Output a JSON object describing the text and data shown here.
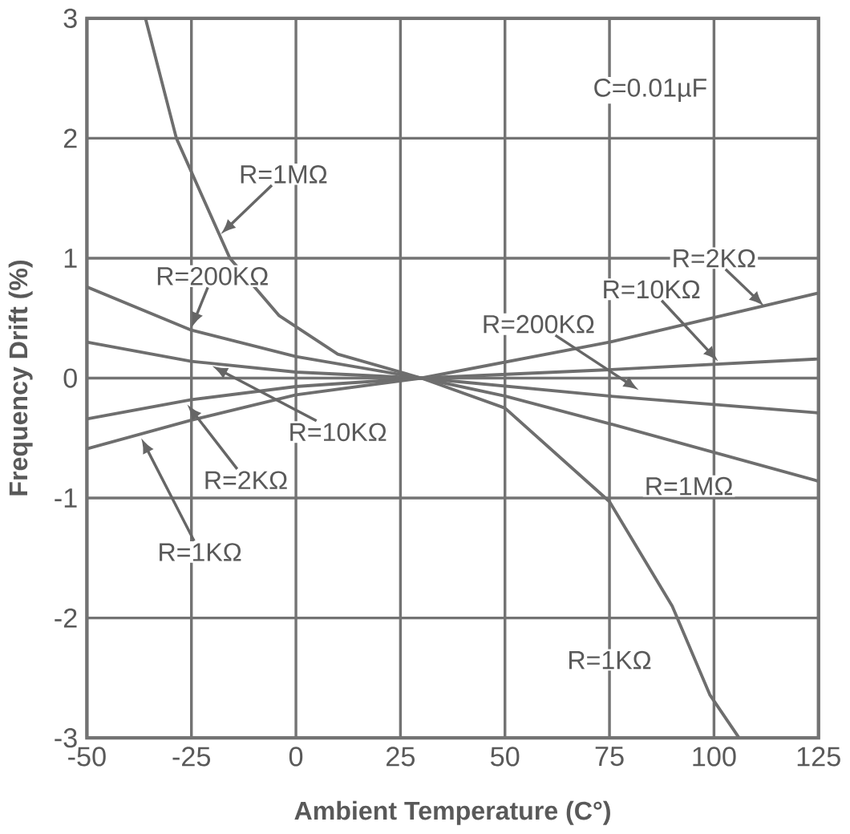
{
  "chart_data": {
    "type": "line",
    "xlabel": "Ambient Temperature (C°)",
    "ylabel": "Frequency Drift (%)",
    "xlim": [
      -50,
      125
    ],
    "ylim": [
      -3,
      3
    ],
    "xticks": [
      -50,
      -25,
      0,
      25,
      50,
      75,
      100,
      125
    ],
    "yticks": [
      -3,
      -2,
      -1,
      0,
      1,
      2,
      3
    ],
    "grid": true,
    "marker": "none",
    "line_style": "solid",
    "series": [
      {
        "color": "#6e6e6e",
        "x": [
          -36,
          -28.6,
          -15.8,
          -4,
          10,
          30,
          50,
          75,
          100,
          125
        ],
        "values": [
          3,
          2,
          1,
          0.52,
          0.2,
          0,
          -0.15,
          -0.38,
          -0.62,
          -0.86
        ]
      },
      {
        "color": "#6e6e6e",
        "x": [
          -50,
          -25,
          0,
          30,
          75,
          125
        ],
        "values": [
          0.76,
          0.4,
          0.18,
          0,
          -0.15,
          -0.29
        ]
      },
      {
        "color": "#6e6e6e",
        "x": [
          -50,
          -25,
          0,
          30,
          75,
          125
        ],
        "values": [
          0.3,
          0.14,
          0.05,
          0,
          0.07,
          0.16
        ]
      },
      {
        "color": "#6e6e6e",
        "x": [
          -50,
          -25,
          0,
          30,
          75,
          125
        ],
        "values": [
          -0.34,
          -0.18,
          -0.07,
          0,
          0.3,
          0.71
        ]
      },
      {
        "color": "#6e6e6e",
        "x": [
          -50,
          -25,
          0,
          30,
          50,
          75,
          90,
          99,
          106
        ],
        "values": [
          -0.59,
          -0.35,
          -0.14,
          0,
          -0.25,
          -1.03,
          -1.9,
          -2.64,
          -3
        ]
      }
    ],
    "annotations": [
      "C=0.01µF",
      {
        "text": "R=1MΩ",
        "x": -18,
        "y": 1.2
      },
      {
        "text": "R=200KΩ",
        "x": -25,
        "y": 0.42
      },
      {
        "text": "R=10KΩ",
        "x": -20,
        "y": 0.1
      },
      {
        "text": "R=2KΩ",
        "x": -26,
        "y": -0.22
      },
      {
        "text": "R=1KΩ",
        "x": -37,
        "y": -0.5
      },
      {
        "text": "R=2KΩ",
        "x": 112,
        "y": 0.6
      },
      {
        "text": "R=10KΩ",
        "x": 101,
        "y": 0.14
      },
      {
        "text": "R=200KΩ",
        "x": 82,
        "y": -0.1
      },
      {
        "text": "R=1MΩ",
        "x": 100,
        "y": -0.62
      },
      {
        "text": "R=1KΩ",
        "x": 90,
        "y": -1.9
      }
    ]
  }
}
